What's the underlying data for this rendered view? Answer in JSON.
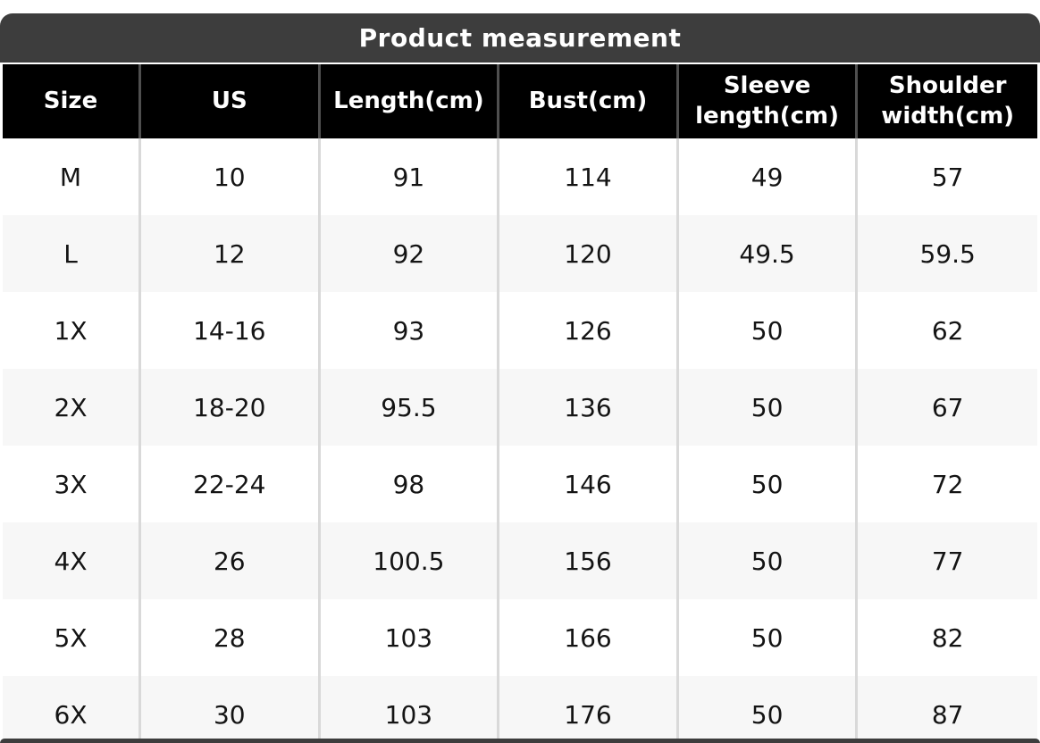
{
  "chart_data": {
    "type": "table",
    "title": "Product measurement",
    "columns": [
      "Size",
      "US",
      "Length(cm)",
      "Bust(cm)",
      "Sleeve length(cm)",
      "Shoulder width(cm)"
    ],
    "rows": [
      [
        "M",
        "10",
        "91",
        "114",
        "49",
        "57"
      ],
      [
        "L",
        "12",
        "92",
        "120",
        "49.5",
        "59.5"
      ],
      [
        "1X",
        "14-16",
        "93",
        "126",
        "50",
        "62"
      ],
      [
        "2X",
        "18-20",
        "95.5",
        "136",
        "50",
        "67"
      ],
      [
        "3X",
        "22-24",
        "98",
        "146",
        "50",
        "72"
      ],
      [
        "4X",
        "26",
        "100.5",
        "156",
        "50",
        "77"
      ],
      [
        "5X",
        "28",
        "103",
        "166",
        "50",
        "82"
      ],
      [
        "6X",
        "30",
        "103",
        "176",
        "50",
        "87"
      ]
    ],
    "layout": {
      "zebra_striping": true,
      "header_position": "top",
      "title_position": "top-center"
    }
  },
  "colors": {
    "title_bar": "#3d3d3d",
    "header_bg": "#000000",
    "header_text": "#ffffff",
    "row_alt": "#f7f7f7",
    "row_text": "#141414",
    "body_divider": "#d9d9d9",
    "header_divider": "#4f4f4f"
  }
}
